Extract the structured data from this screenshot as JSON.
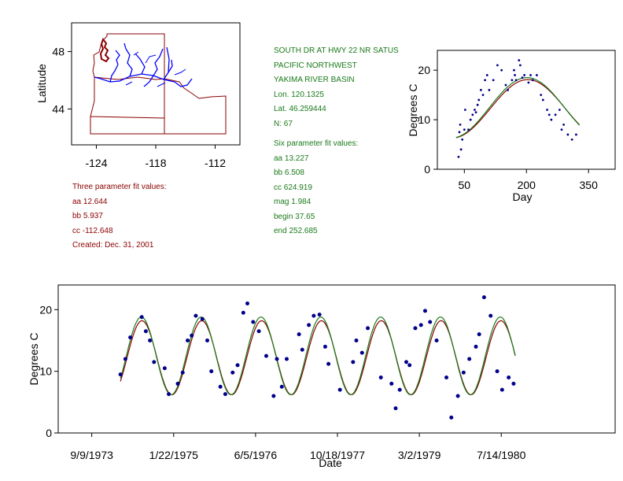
{
  "station": {
    "name": "SOUTH DR AT HWY 22 NR SATUS",
    "region": "PACIFIC NORTHWEST",
    "basin": "YAKIMA RIVER BASIN",
    "lon": "Lon. 120.1325",
    "lat": "Lat. 46.259444",
    "n": "N: 67"
  },
  "six_param": {
    "title": "Six parameter fit values:",
    "aa": "aa 13.227",
    "bb": "bb 6.508",
    "cc": "cc 624.919",
    "mag": "mag 1.984",
    "begin": "begin 37.65",
    "end": "end 252.685"
  },
  "three_param": {
    "title": "Three parameter fit values:",
    "aa": "aa 12.644",
    "bb": "bb 5.937",
    "cc": "cc -112.648",
    "created": "Created:   Dec. 31, 2001"
  },
  "colors": {
    "fit3": "#8b0000",
    "fit6": "#1a7a1a",
    "points": "#00008b",
    "map_border": "#8b0000",
    "rivers": "#0000ff"
  },
  "map": {
    "ylabel": "Latitude",
    "xticks": [
      "-124",
      "-118",
      "-112"
    ],
    "yticks": [
      "48",
      "44"
    ],
    "xlim": [
      -126.5,
      -109.5
    ],
    "ylim": [
      41.5,
      50.0
    ]
  },
  "chart_data": [
    {
      "type": "scatter",
      "xlabel": "Day",
      "ylabel": "Degrees C",
      "xlim": [
        0,
        365
      ],
      "ylim": [
        0,
        24
      ],
      "xticks": [
        50,
        200,
        350
      ],
      "yticks": [
        0,
        10,
        20
      ],
      "fits": [
        "three-parameter",
        "six-parameter"
      ],
      "points": [
        [
          36,
          2.5
        ],
        [
          38,
          7.5
        ],
        [
          40,
          9
        ],
        [
          42,
          4
        ],
        [
          45,
          6
        ],
        [
          50,
          8
        ],
        [
          52,
          12
        ],
        [
          60,
          8
        ],
        [
          65,
          10
        ],
        [
          70,
          11
        ],
        [
          75,
          12
        ],
        [
          78,
          11.5
        ],
        [
          82,
          13
        ],
        [
          85,
          14
        ],
        [
          90,
          16
        ],
        [
          95,
          15
        ],
        [
          100,
          18
        ],
        [
          105,
          19
        ],
        [
          110,
          16
        ],
        [
          120,
          18
        ],
        [
          130,
          21
        ],
        [
          140,
          20
        ],
        [
          150,
          17
        ],
        [
          155,
          16
        ],
        [
          165,
          18
        ],
        [
          170,
          20
        ],
        [
          172,
          19
        ],
        [
          175,
          18
        ],
        [
          182,
          22
        ],
        [
          185,
          21
        ],
        [
          190,
          18.5
        ],
        [
          195,
          19
        ],
        [
          205,
          17.5
        ],
        [
          210,
          19
        ],
        [
          215,
          18
        ],
        [
          225,
          19
        ],
        [
          235,
          15
        ],
        [
          240,
          14
        ],
        [
          250,
          12
        ],
        [
          255,
          11
        ],
        [
          260,
          10
        ],
        [
          270,
          11
        ],
        [
          280,
          12
        ],
        [
          285,
          8
        ],
        [
          290,
          9
        ],
        [
          300,
          7
        ],
        [
          310,
          6
        ],
        [
          320,
          7
        ]
      ]
    },
    {
      "type": "scatter",
      "xlabel": "Date",
      "ylabel": "Degrees C",
      "xticks": [
        "9/9/1973",
        "1/22/1975",
        "6/5/1976",
        "10/18/1977",
        "3/2/1979",
        "7/14/1980"
      ],
      "xtick_days": [
        0,
        500,
        1000,
        1500,
        2000,
        2500
      ],
      "xlim": [
        -200,
        3200
      ],
      "ylim": [
        0,
        24
      ],
      "yticks": [
        0,
        10,
        20
      ],
      "fits": [
        "three-parameter",
        "six-parameter"
      ],
      "points": [
        [
          180,
          9.5
        ],
        [
          210,
          12
        ],
        [
          240,
          15.5
        ],
        [
          310,
          18.8
        ],
        [
          335,
          16.5
        ],
        [
          360,
          15
        ],
        [
          385,
          11.5
        ],
        [
          450,
          10.5
        ],
        [
          475,
          6.3
        ],
        [
          530,
          8
        ],
        [
          560,
          9.8
        ],
        [
          590,
          15
        ],
        [
          615,
          15.8
        ],
        [
          640,
          19
        ],
        [
          680,
          18.5
        ],
        [
          710,
          15
        ],
        [
          735,
          10
        ],
        [
          790,
          7.5
        ],
        [
          820,
          6.3
        ],
        [
          865,
          9.8
        ],
        [
          895,
          11
        ],
        [
          930,
          19.5
        ],
        [
          955,
          21
        ],
        [
          990,
          18
        ],
        [
          1025,
          16.5
        ],
        [
          1070,
          12.5
        ],
        [
          1115,
          6
        ],
        [
          1135,
          12
        ],
        [
          1165,
          7.5
        ],
        [
          1195,
          12
        ],
        [
          1270,
          16
        ],
        [
          1290,
          13.5
        ],
        [
          1330,
          17.5
        ],
        [
          1360,
          19
        ],
        [
          1395,
          19.2
        ],
        [
          1430,
          14
        ],
        [
          1450,
          11.2
        ],
        [
          1520,
          7
        ],
        [
          1600,
          11.5
        ],
        [
          1620,
          15
        ],
        [
          1655,
          13
        ],
        [
          1690,
          17
        ],
        [
          1770,
          9
        ],
        [
          1835,
          8
        ],
        [
          1860,
          4
        ],
        [
          1885,
          7
        ],
        [
          1925,
          11.5
        ],
        [
          1945,
          11
        ],
        [
          1980,
          17
        ],
        [
          2015,
          17.5
        ],
        [
          2040,
          19.8
        ],
        [
          2070,
          18
        ],
        [
          2110,
          15
        ],
        [
          2170,
          9
        ],
        [
          2200,
          2.5
        ],
        [
          2240,
          6
        ],
        [
          2275,
          9.8
        ],
        [
          2310,
          12
        ],
        [
          2350,
          14
        ],
        [
          2370,
          16
        ],
        [
          2400,
          22
        ],
        [
          2440,
          19
        ],
        [
          2480,
          10
        ],
        [
          2510,
          7
        ],
        [
          2550,
          9
        ],
        [
          2580,
          8
        ]
      ]
    }
  ]
}
